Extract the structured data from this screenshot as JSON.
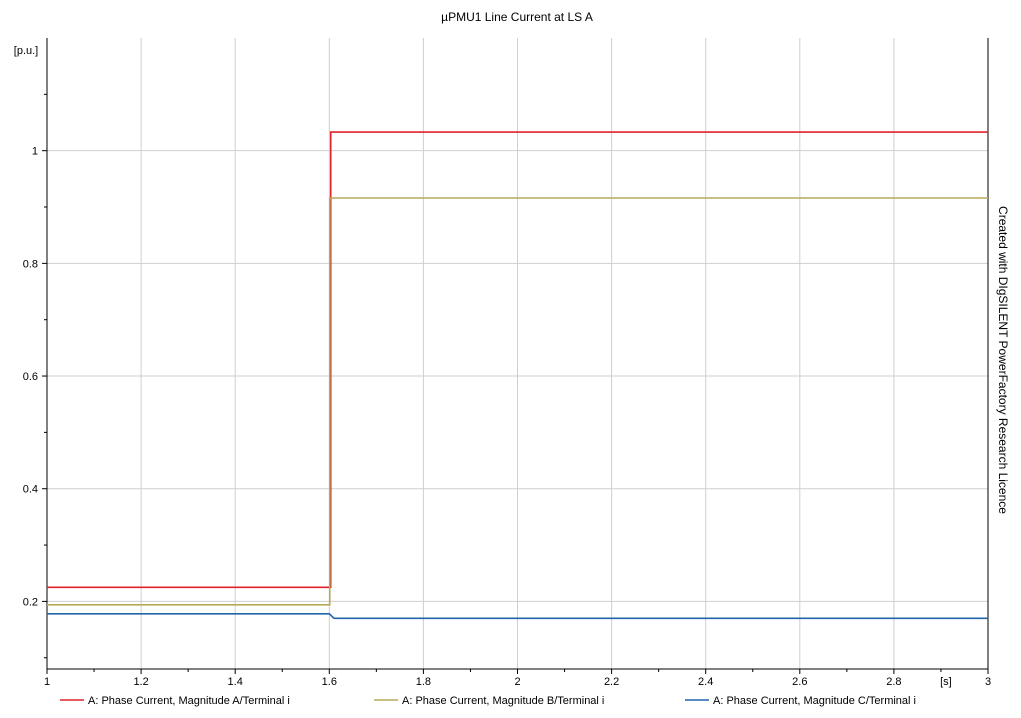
{
  "chart_data": {
    "type": "line",
    "title": "µPMU1 Line Current at LS A",
    "ylabel": "[p.u.]",
    "xlabel": "[s]",
    "watermark": "Created with DIgSILENT PowerFactory Research Licence",
    "xlim": [
      1.0,
      3.0
    ],
    "ylim": [
      0.08,
      1.2
    ],
    "x_ticks": [
      1,
      1.2,
      1.4,
      1.6,
      1.8,
      2,
      2.2,
      2.4,
      2.6,
      2.8,
      3
    ],
    "x_tick_labels": [
      "1",
      "1.2",
      "1.4",
      "1.6",
      "1.8",
      "2",
      "2.2",
      "2.4",
      "2.6",
      "2.8",
      "3"
    ],
    "y_ticks": [
      0.2,
      0.4,
      0.6,
      0.8,
      1.0
    ],
    "y_tick_labels": [
      "0.2",
      "0.4",
      "0.6",
      "0.8",
      "1"
    ],
    "grid": true,
    "legend_position": "bottom",
    "series": [
      {
        "name": "A: Phase Current, Magnitude A/Terminal i",
        "color": "#e0232b",
        "x": [
          1.0,
          1.6,
          1.603,
          1.603,
          3.0
        ],
        "y": [
          0.225,
          0.225,
          0.225,
          1.033,
          1.033
        ]
      },
      {
        "name": "A: Phase Current, Magnitude B/Terminal i",
        "color": "#b5aa57",
        "x": [
          1.0,
          1.6,
          1.601,
          1.601,
          3.0
        ],
        "y": [
          0.194,
          0.194,
          0.194,
          0.916,
          0.916
        ]
      },
      {
        "name": "A: Phase Current, Magnitude C/Terminal i",
        "color": "#2166ac",
        "x": [
          1.0,
          1.6,
          1.61,
          3.0
        ],
        "y": [
          0.178,
          0.178,
          0.17,
          0.17
        ]
      }
    ]
  }
}
